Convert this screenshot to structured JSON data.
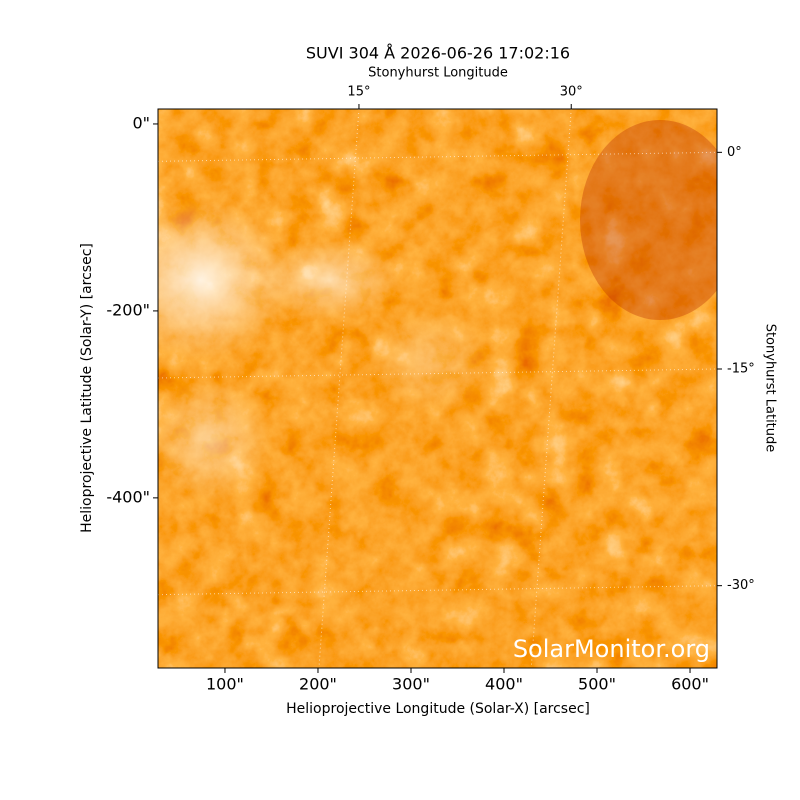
{
  "chart_data": {
    "type": "image",
    "title": "SUVI 304 Å 2026-06-26 17:02:16",
    "xlabel": "Helioprojective Longitude (Solar-X) [arcsec]",
    "ylabel": "Helioprojective Latitude (Solar-Y) [arcsec]",
    "x2label": "Stonyhurst Longitude",
    "y2label": "Stonyhurst Latitude",
    "watermark": "SolarMonitor.org",
    "xlim": [
      28,
      629
    ],
    "xticks": [
      {
        "value": 100,
        "label": "100\""
      },
      {
        "value": 200,
        "label": "200\""
      },
      {
        "value": 300,
        "label": "300\""
      },
      {
        "value": 400,
        "label": "400\""
      },
      {
        "value": 500,
        "label": "500\""
      },
      {
        "value": 600,
        "label": "600\""
      }
    ],
    "ylim": [
      -582,
      16
    ],
    "yticks": [
      {
        "value": 0,
        "label": "0\""
      },
      {
        "value": -200,
        "label": "-200\""
      },
      {
        "value": -400,
        "label": "-400\""
      }
    ],
    "x2lim": [
      0.8,
      40.3
    ],
    "x2ticks": [
      {
        "value": 15,
        "label": "15°"
      },
      {
        "value": 30,
        "label": "30°"
      }
    ],
    "y2lim": [
      3.0,
      -35.7
    ],
    "y2ticks": [
      {
        "value": 0,
        "label": "0°"
      },
      {
        "value": -15,
        "label": "-15°"
      },
      {
        "value": -30,
        "label": "-30°"
      }
    ],
    "grid": true
  }
}
